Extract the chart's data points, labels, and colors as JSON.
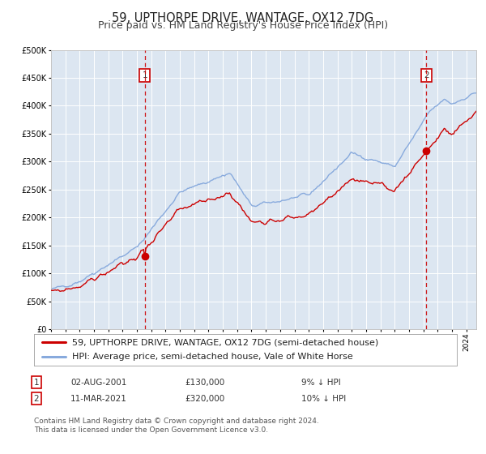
{
  "title": "59, UPTHORPE DRIVE, WANTAGE, OX12 7DG",
  "subtitle": "Price paid vs. HM Land Registry's House Price Index (HPI)",
  "legend_line1": "59, UPTHORPE DRIVE, WANTAGE, OX12 7DG (semi-detached house)",
  "legend_line2": "HPI: Average price, semi-detached house, Vale of White Horse",
  "transaction1_date": "02-AUG-2001",
  "transaction1_price": 130000,
  "transaction1_note": "9% ↓ HPI",
  "transaction2_date": "11-MAR-2021",
  "transaction2_price": 320000,
  "transaction2_note": "10% ↓ HPI",
  "footnote1": "Contains HM Land Registry data © Crown copyright and database right 2024.",
  "footnote2": "This data is licensed under the Open Government Licence v3.0.",
  "ylim": [
    0,
    500000
  ],
  "yticks": [
    0,
    50000,
    100000,
    150000,
    200000,
    250000,
    300000,
    350000,
    400000,
    450000,
    500000
  ],
  "start_year": 1995,
  "end_year": 2024,
  "line_color_property": "#cc0000",
  "line_color_hpi": "#88aadd",
  "dot_color": "#cc0000",
  "vline_color": "#cc0000",
  "plot_bg_color": "#dce6f1",
  "fig_bg_color": "#ffffff",
  "box_color": "#cc0000",
  "grid_color": "#ffffff",
  "title_fontsize": 10.5,
  "subtitle_fontsize": 9,
  "legend_fontsize": 8,
  "footnote_fontsize": 6.5
}
